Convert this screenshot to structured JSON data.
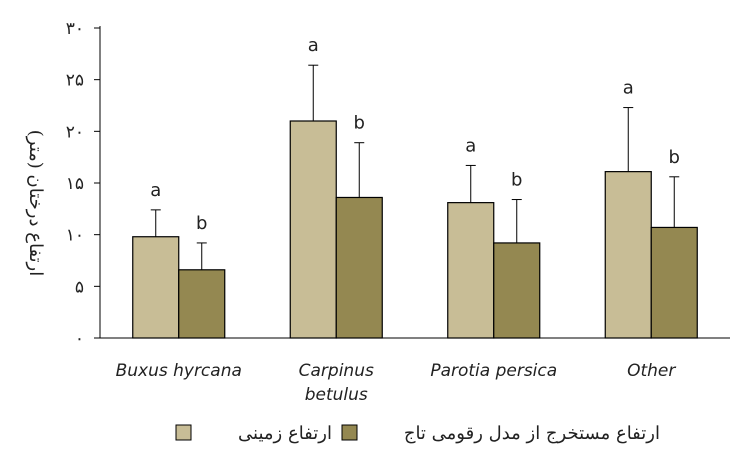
{
  "chart_data": {
    "type": "bar",
    "title": "",
    "xlabel": "",
    "ylabel": "ارتفاع درختان (متر)",
    "ylim": [
      0,
      30
    ],
    "yticks": [
      "۰",
      "۵",
      "۱۰",
      "۱۵",
      "۲۰",
      "۲۵",
      "۳۰"
    ],
    "ytick_values": [
      0,
      5,
      10,
      15,
      20,
      25,
      30
    ],
    "categories": [
      [
        "Buxus hyrcana"
      ],
      [
        "Carpinus",
        "betulus"
      ],
      [
        "Parotia persica"
      ],
      [
        "Other"
      ]
    ],
    "series": [
      {
        "name": "ارتفاع زمینی",
        "color": "#c8bd96",
        "values": [
          9.8,
          21.0,
          13.1,
          16.1
        ],
        "errors": [
          2.6,
          5.4,
          3.6,
          6.2
        ],
        "letters": [
          "a",
          "a",
          "a",
          "a"
        ]
      },
      {
        "name": "ارتفاع مستخرج از مدل رقومی تاج",
        "color": "#948851",
        "values": [
          6.6,
          13.6,
          9.2,
          10.7
        ],
        "errors": [
          2.6,
          5.3,
          4.2,
          4.9
        ],
        "letters": [
          "b",
          "b",
          "b",
          "b"
        ]
      }
    ],
    "grid": false,
    "legend_position": "bottom"
  }
}
